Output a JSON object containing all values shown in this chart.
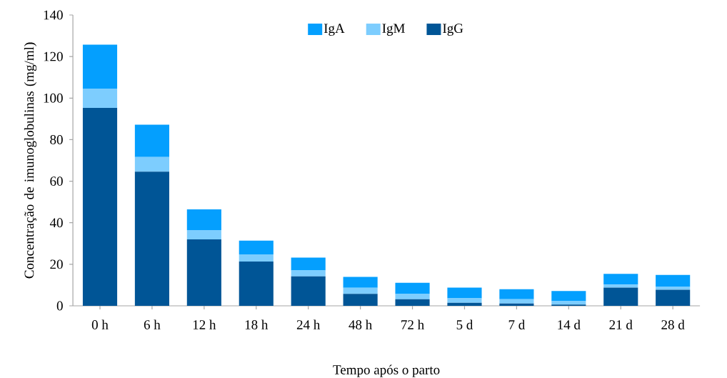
{
  "chart_data": {
    "type": "bar",
    "stacked": true,
    "xlabel": "Tempo após o parto",
    "ylabel": "Concentração de imunoglobulinas (mg/ml)",
    "categories": [
      "0 h",
      "6 h",
      "12 h",
      "18 h",
      "24 h",
      "48 h",
      "72 h",
      "5 d",
      "7 d",
      "14 d",
      "21 d",
      "28 d"
    ],
    "series": [
      {
        "name": "IgG",
        "color": "#005596",
        "values": [
          95.3,
          64.6,
          32.0,
          21.3,
          14.2,
          5.8,
          3.2,
          1.5,
          1.1,
          0.6,
          8.8,
          7.7
        ]
      },
      {
        "name": "IgM",
        "color": "#7dcdfe",
        "values": [
          9.3,
          7.0,
          4.5,
          3.5,
          2.8,
          2.9,
          2.5,
          2.1,
          2.1,
          1.6,
          1.4,
          1.4
        ]
      },
      {
        "name": "IgA",
        "color": "#049ffe",
        "values": [
          21.1,
          15.6,
          9.9,
          6.6,
          6.2,
          5.2,
          5.4,
          5.2,
          4.8,
          4.9,
          5.2,
          5.8
        ]
      }
    ],
    "ylim": [
      0,
      140
    ],
    "yticks": [
      0,
      20,
      40,
      60,
      80,
      100,
      120,
      140
    ],
    "grid": false,
    "legend": "top"
  }
}
